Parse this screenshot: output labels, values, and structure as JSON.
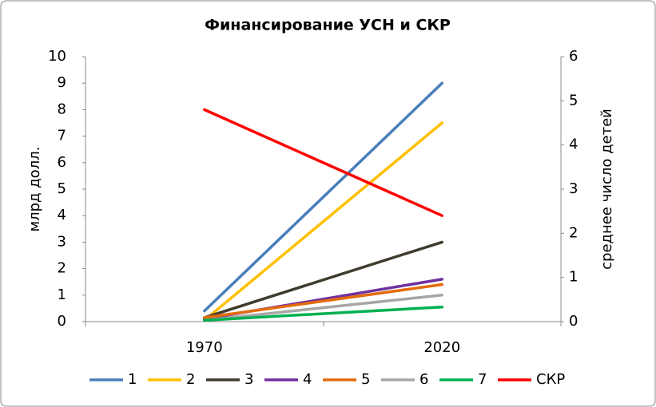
{
  "chart_data": {
    "type": "line",
    "title": "Финансирование УСН и СКР",
    "y_label": "млрд долл.",
    "y2_label": "среднее число детей",
    "categories": [
      "1970",
      "2020"
    ],
    "ylim": [
      0,
      10
    ],
    "yticks": [
      0,
      1,
      2,
      3,
      4,
      5,
      6,
      7,
      8,
      9,
      10
    ],
    "y2lim": [
      0,
      6
    ],
    "y2ticks": [
      0,
      1,
      2,
      3,
      4,
      5,
      6
    ],
    "grid": false,
    "legend": "bottom",
    "series": [
      {
        "name": "1",
        "color": "#4a7ebb",
        "values": [
          0.4,
          9
        ]
      },
      {
        "name": "2",
        "color": "#ffc000",
        "values": [
          0.05,
          7.5
        ]
      },
      {
        "name": "3",
        "color": "#403c2c",
        "values": [
          0.15,
          3
        ]
      },
      {
        "name": "4",
        "color": "#7030a0",
        "values": [
          0.1,
          1.6
        ]
      },
      {
        "name": "5",
        "color": "#e46c0a",
        "values": [
          0.15,
          1.4
        ]
      },
      {
        "name": "6",
        "color": "#a6a6a6",
        "values": [
          0.05,
          1.0
        ]
      },
      {
        "name": "7",
        "color": "#00b050",
        "values": [
          0.05,
          0.55
        ]
      },
      {
        "name": "СКР",
        "color": "#ff0000",
        "axis": "y2",
        "values": [
          4.8,
          2.4
        ]
      }
    ]
  }
}
